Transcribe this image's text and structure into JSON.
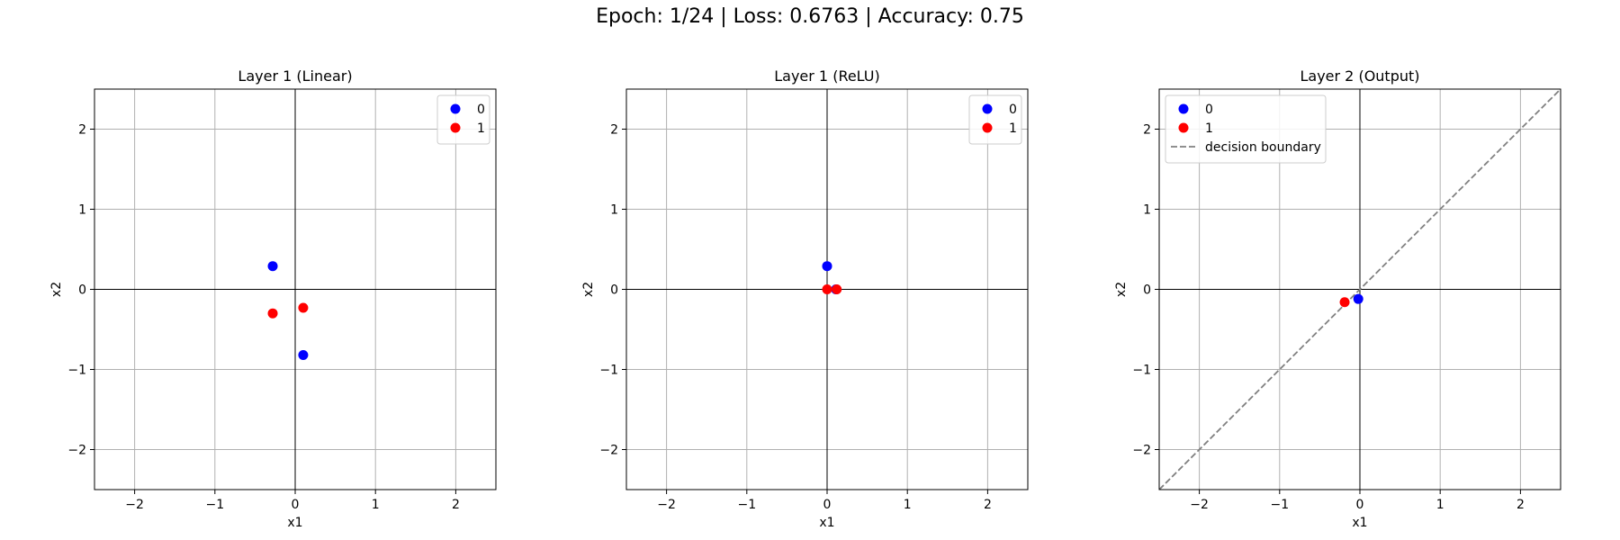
{
  "suptitle": "Epoch: 1/24 | Loss: 0.6763 | Accuracy: 0.75",
  "colors": {
    "class0": "#0000ff",
    "class1": "#ff0000",
    "boundary": "#808080",
    "grid": "#b0b0b0"
  },
  "chart_data": [
    {
      "type": "scatter",
      "title": "Layer 1 (Linear)",
      "xlabel": "x1",
      "ylabel": "x2",
      "xlim": [
        -2.5,
        2.5
      ],
      "ylim": [
        -2.5,
        2.5
      ],
      "xticks": [
        -2,
        -1,
        0,
        1,
        2
      ],
      "yticks": [
        -2,
        -1,
        0,
        1,
        2
      ],
      "tick_labels": [
        "−2",
        "−1",
        "0",
        "1",
        "2"
      ],
      "grid": true,
      "legend_position": "upper right",
      "series": [
        {
          "name": "0",
          "color": "#0000ff",
          "points": [
            [
              -0.28,
              0.29
            ],
            [
              0.1,
              -0.82
            ]
          ]
        },
        {
          "name": "1",
          "color": "#ff0000",
          "points": [
            [
              -0.28,
              -0.3
            ],
            [
              0.1,
              -0.23
            ]
          ]
        }
      ],
      "lines": []
    },
    {
      "type": "scatter",
      "title": "Layer 1 (ReLU)",
      "xlabel": "x1",
      "ylabel": "x2",
      "xlim": [
        -2.5,
        2.5
      ],
      "ylim": [
        -2.5,
        2.5
      ],
      "xticks": [
        -2,
        -1,
        0,
        1,
        2
      ],
      "yticks": [
        -2,
        -1,
        0,
        1,
        2
      ],
      "tick_labels": [
        "−2",
        "−1",
        "0",
        "1",
        "2"
      ],
      "grid": true,
      "legend_position": "upper right",
      "series": [
        {
          "name": "0",
          "color": "#0000ff",
          "points": [
            [
              0.0,
              0.29
            ],
            [
              0.11,
              0.0
            ]
          ]
        },
        {
          "name": "1",
          "color": "#ff0000",
          "points": [
            [
              0.0,
              0.0
            ],
            [
              0.12,
              0.0
            ]
          ]
        }
      ],
      "lines": []
    },
    {
      "type": "scatter",
      "title": "Layer 2 (Output)",
      "xlabel": "x1",
      "ylabel": "x2",
      "xlim": [
        -2.5,
        2.5
      ],
      "ylim": [
        -2.5,
        2.5
      ],
      "xticks": [
        -2,
        -1,
        0,
        1,
        2
      ],
      "yticks": [
        -2,
        -1,
        0,
        1,
        2
      ],
      "tick_labels": [
        "−2",
        "−1",
        "0",
        "1",
        "2"
      ],
      "grid": true,
      "legend_position": "upper left",
      "series": [
        {
          "name": "0",
          "color": "#0000ff",
          "points": [
            [
              -0.02,
              -0.12
            ]
          ]
        },
        {
          "name": "1",
          "color": "#ff0000",
          "points": [
            [
              -0.19,
              -0.16
            ]
          ]
        }
      ],
      "lines": [
        {
          "name": "decision boundary",
          "color": "#808080",
          "dash": true,
          "x": [
            -2.5,
            2.5
          ],
          "y": [
            -2.5,
            2.5
          ]
        }
      ]
    }
  ]
}
